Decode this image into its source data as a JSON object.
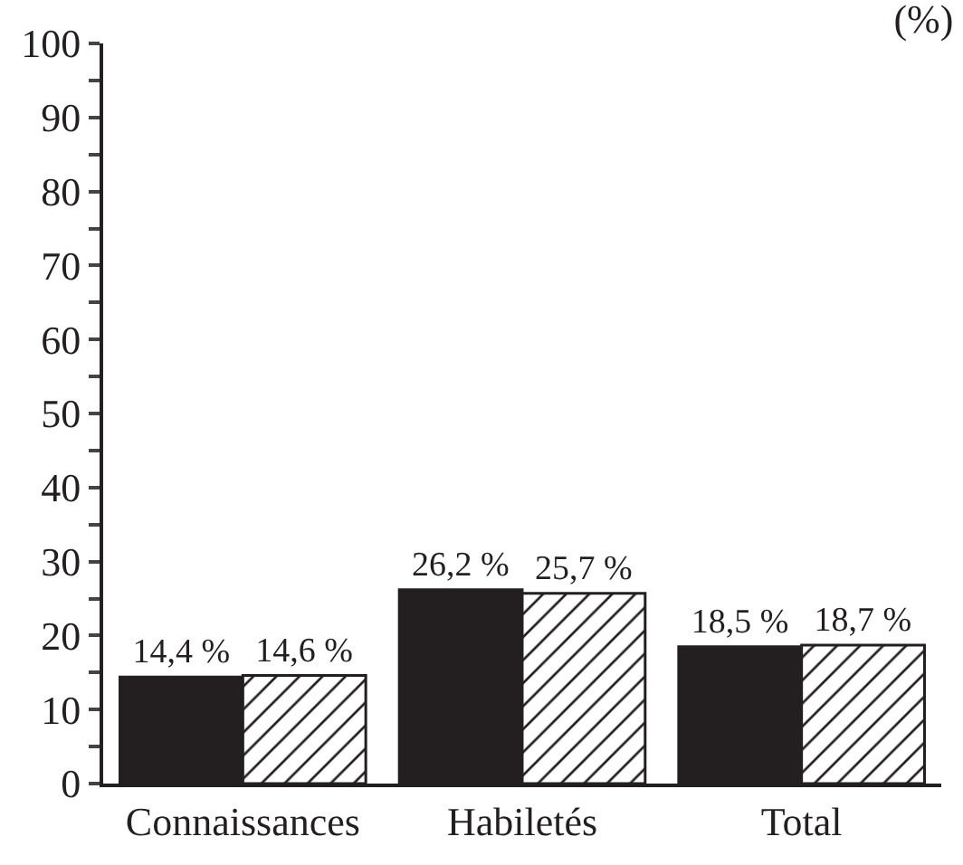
{
  "chart_data": {
    "type": "bar",
    "title": "(%)",
    "categories": [
      "Connaissances",
      "Habiletés",
      "Total"
    ],
    "series": [
      {
        "color": "#231f20",
        "values": [
          14.4,
          26.2,
          18.5
        ],
        "value_labels": [
          "14,4 %",
          "26,2 %",
          "18,5 %"
        ]
      },
      {
        "color": "#231f20",
        "values": [
          14.6,
          25.7,
          18.7
        ],
        "value_labels": [
          "14,6 %",
          "25,7 %",
          "18,7 %"
        ]
      }
    ],
    "ylim": [
      0,
      100
    ],
    "yticks": [
      0,
      {
        "value": 5,
        "label": null
      },
      10,
      {
        "value": 15,
        "label": null
      },
      20,
      {
        "value": 25,
        "label": null
      },
      30,
      {
        "value": 35,
        "label": null
      },
      40,
      {
        "value": 45,
        "label": null
      },
      50,
      {
        "value": 55,
        "label": null
      },
      60,
      {
        "value": 65,
        "label": null
      },
      70,
      {
        "value": 75,
        "label": null
      },
      80,
      {
        "value": 85,
        "label": null
      },
      90,
      {
        "value": 95,
        "label": null
      },
      100
    ],
    "legend": false
  }
}
